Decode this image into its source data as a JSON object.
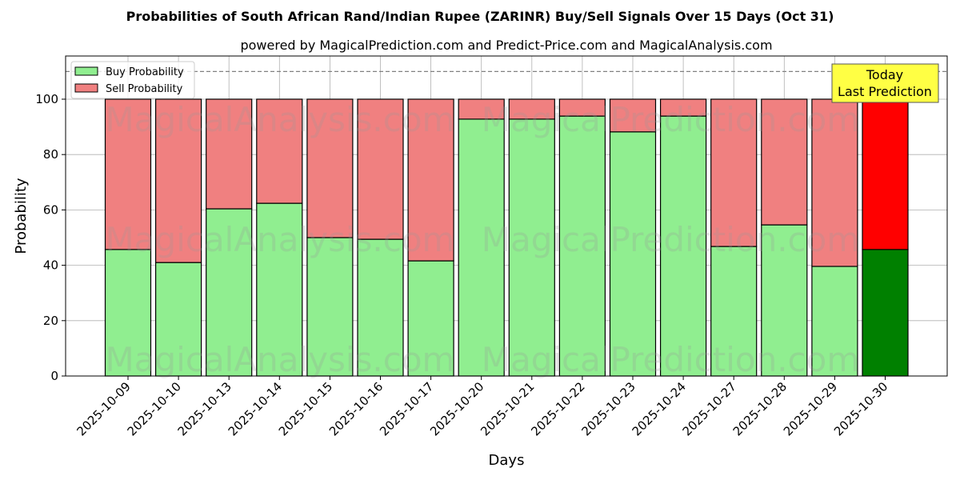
{
  "chart_data": {
    "type": "bar",
    "stacked": true,
    "title": "Probabilities of South African Rand/Indian Rupee (ZARINR) Buy/Sell Signals Over 15 Days (Oct 31)",
    "subtitle": "powered by MagicalPrediction.com and Predict-Price.com and MagicalAnalysis.com",
    "xlabel": "Days",
    "ylabel": "Probability",
    "ylim": [
      0,
      115.6
    ],
    "yticks": [
      0,
      20,
      40,
      60,
      80,
      100
    ],
    "grid": true,
    "legend_position": "top-left",
    "reference_line": 110,
    "categories": [
      "2025-10-09",
      "2025-10-10",
      "2025-10-13",
      "2025-10-14",
      "2025-10-15",
      "2025-10-16",
      "2025-10-17",
      "2025-10-20",
      "2025-10-21",
      "2025-10-22",
      "2025-10-23",
      "2025-10-24",
      "2025-10-27",
      "2025-10-28",
      "2025-10-29",
      "2025-10-30"
    ],
    "series": [
      {
        "name": "Buy Probability",
        "color": "#90ee90",
        "values": [
          45.7,
          41.0,
          60.4,
          62.4,
          50.0,
          49.4,
          41.6,
          92.8,
          92.8,
          93.9,
          88.2,
          93.9,
          46.8,
          54.6,
          39.6,
          45.7
        ]
      },
      {
        "name": "Sell Probability",
        "color": "#f08080",
        "values": [
          54.3,
          59.0,
          39.6,
          37.6,
          50.0,
          50.6,
          58.4,
          7.2,
          7.2,
          6.1,
          11.8,
          6.1,
          53.2,
          45.4,
          60.4,
          54.3
        ]
      }
    ],
    "highlight": {
      "index": 15,
      "buy_color": "#008000",
      "sell_color": "#ff0000"
    },
    "annotation": {
      "line1": "Today",
      "line2": "Last Prediction"
    },
    "watermarks": [
      "MagicalAnalysis.com",
      "MagicalPrediction.com"
    ]
  }
}
